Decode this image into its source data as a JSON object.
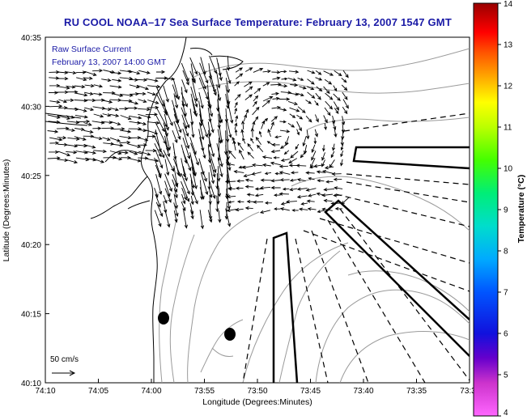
{
  "title": "RU COOL  NOAA–17  Sea Surface Temperature:  February 13, 2007 1547 GMT",
  "annotation": {
    "line1": "Raw Surface Current",
    "line2": "February 13, 2007 14:00 GMT"
  },
  "scale": {
    "label": "50 cm/s"
  },
  "axes": {
    "xlabel": "Longitude (Degrees:Minutes)",
    "ylabel": "Latitude (Degrees:Minutes)",
    "xticks": [
      "74:10",
      "74:05",
      "74:00",
      "73:55",
      "73:50",
      "73:45",
      "73:40",
      "73:35",
      "73:3"
    ],
    "yticks": [
      "40:35",
      "40:30",
      "40:25",
      "40:20",
      "40:15",
      "40:10"
    ]
  },
  "colorbar": {
    "label": "Temperature (°C)",
    "ticks": [
      "14",
      "13",
      "12",
      "11",
      "10",
      "9",
      "8",
      "7",
      "6",
      "5",
      "4"
    ],
    "min": 4,
    "max": 14
  }
}
